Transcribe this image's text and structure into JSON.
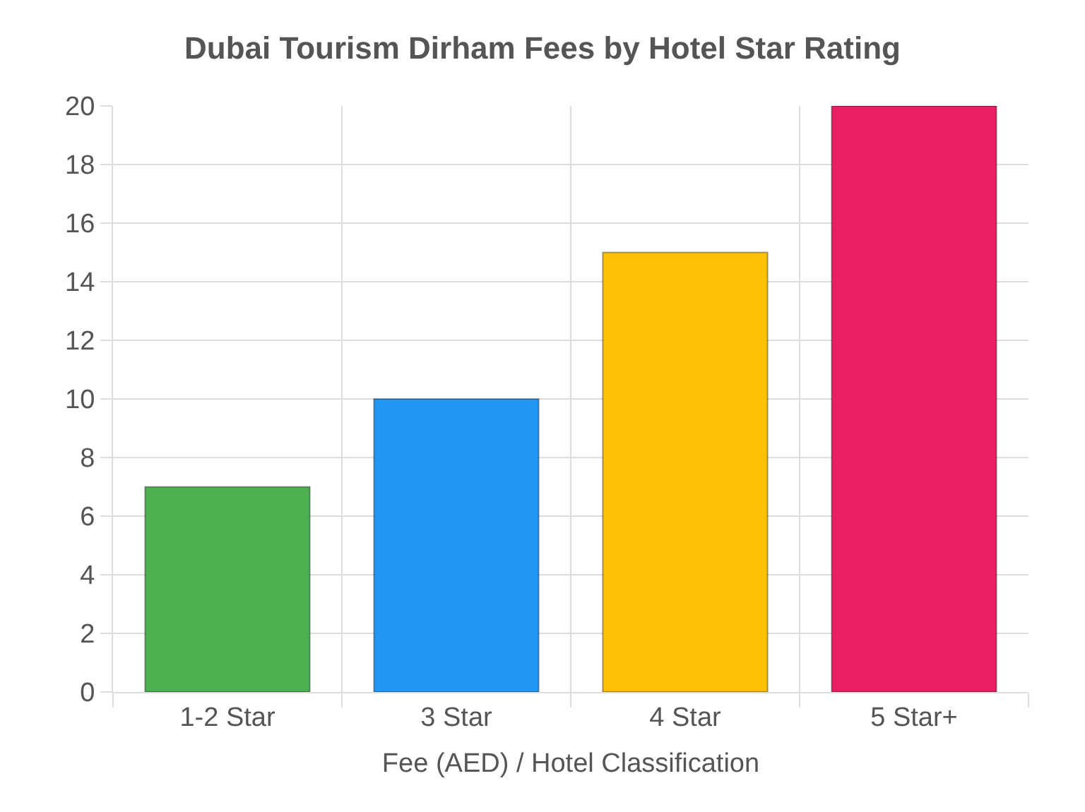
{
  "chart_data": {
    "type": "bar",
    "title": "Dubai Tourism Dirham Fees by Hotel Star Rating",
    "xlabel": "Fee (AED) / Hotel Classification",
    "categories": [
      "1-2 Star",
      "3 Star",
      "4 Star",
      "5 Star+"
    ],
    "values": [
      7,
      10,
      15,
      20
    ],
    "colors": [
      "#4caf50",
      "#2196f3",
      "#ffc107",
      "#e91e63"
    ],
    "ylim": [
      0,
      20
    ],
    "yticks": [
      0,
      2,
      4,
      6,
      8,
      10,
      12,
      14,
      16,
      18,
      20
    ],
    "grid": true
  }
}
